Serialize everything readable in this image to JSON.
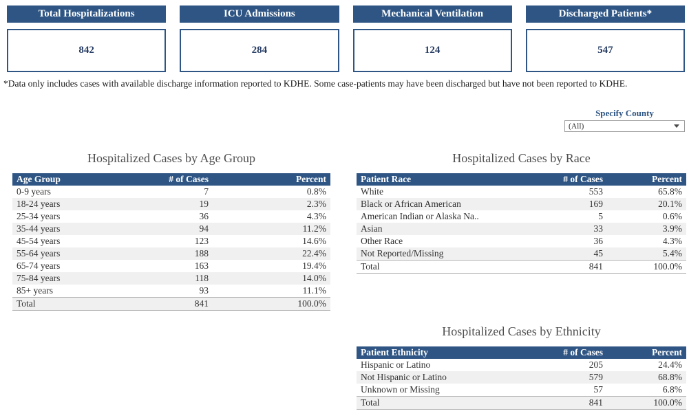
{
  "colors": {
    "header_navy": "#2E5584",
    "value_navy": "#263C63",
    "row_band_gray": "#F0F0F0"
  },
  "cards": [
    {
      "title": "Total Hospitalizations",
      "value": "842"
    },
    {
      "title": "ICU Admissions",
      "value": "284"
    },
    {
      "title": "Mechanical Ventilation",
      "value": "124"
    },
    {
      "title": "Discharged Patients*",
      "value": "547"
    }
  ],
  "footnote": "*Data only includes cases with available discharge information reported to KDHE. Some case-patients may have been discharged but have not been reported to KDHE.",
  "county_filter": {
    "label": "Specify County",
    "selected": "(All)",
    "icon": "chevron-down-icon"
  },
  "tables": {
    "age": {
      "title": "Hospitalized Cases by Age Group",
      "columns": [
        "Age Group",
        "# of Cases",
        "Percent"
      ],
      "rows": [
        {
          "label": "0-9 years",
          "cases": "7",
          "percent": "0.8%"
        },
        {
          "label": "18-24 years",
          "cases": "19",
          "percent": "2.3%"
        },
        {
          "label": "25-34 years",
          "cases": "36",
          "percent": "4.3%"
        },
        {
          "label": "35-44 years",
          "cases": "94",
          "percent": "11.2%"
        },
        {
          "label": "45-54 years",
          "cases": "123",
          "percent": "14.6%"
        },
        {
          "label": "55-64 years",
          "cases": "188",
          "percent": "22.4%"
        },
        {
          "label": "65-74 years",
          "cases": "163",
          "percent": "19.4%"
        },
        {
          "label": "75-84 years",
          "cases": "118",
          "percent": "14.0%"
        },
        {
          "label": "85+ years",
          "cases": "93",
          "percent": "11.1%"
        },
        {
          "label": "Total",
          "cases": "841",
          "percent": "100.0%"
        }
      ]
    },
    "race": {
      "title": "Hospitalized Cases by Race",
      "columns": [
        "Patient Race",
        "# of Cases",
        "Percent"
      ],
      "rows": [
        {
          "label": "White",
          "cases": "553",
          "percent": "65.8%"
        },
        {
          "label": "Black or African American",
          "cases": "169",
          "percent": "20.1%"
        },
        {
          "label": "American Indian or Alaska Na..",
          "cases": "5",
          "percent": "0.6%"
        },
        {
          "label": "Asian",
          "cases": "33",
          "percent": "3.9%"
        },
        {
          "label": "Other Race",
          "cases": "36",
          "percent": "4.3%"
        },
        {
          "label": "Not Reported/Missing",
          "cases": "45",
          "percent": "5.4%"
        },
        {
          "label": "Total",
          "cases": "841",
          "percent": "100.0%"
        }
      ]
    },
    "ethnicity": {
      "title": "Hospitalized Cases by Ethnicity",
      "columns": [
        "Patient Ethnicity",
        "# of Cases",
        "Percent"
      ],
      "rows": [
        {
          "label": "Hispanic or Latino",
          "cases": "205",
          "percent": "24.4%"
        },
        {
          "label": "Not Hispanic or Latino",
          "cases": "579",
          "percent": "68.8%"
        },
        {
          "label": "Unknown or Missing",
          "cases": "57",
          "percent": "6.8%"
        },
        {
          "label": "Total",
          "cases": "841",
          "percent": "100.0%"
        }
      ]
    }
  }
}
